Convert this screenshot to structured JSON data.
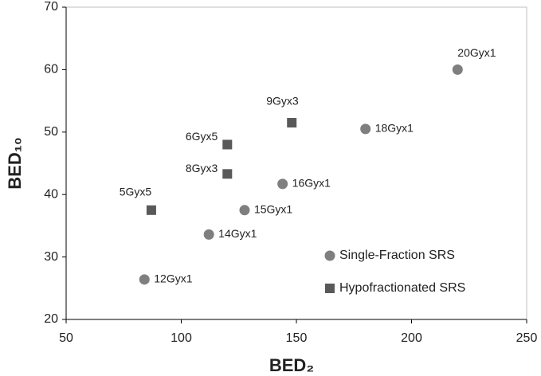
{
  "chart_data": {
    "type": "scatter",
    "xlabel": "BED₂",
    "ylabel": "BED₁₀",
    "xlim": [
      50,
      250
    ],
    "xticks": [
      50,
      100,
      150,
      200,
      250
    ],
    "ylim": [
      20,
      70
    ],
    "yticks": [
      20,
      30,
      40,
      50,
      60,
      70
    ],
    "legend": "lower right",
    "series": [
      {
        "name": "Single-Fraction SRS",
        "color": "#7f7f7f",
        "marker": "circle",
        "labels": [
          "12Gyx1",
          "14Gyx1",
          "15Gyx1",
          "16Gyx1",
          "18Gyx1",
          "20Gyx1"
        ],
        "x": [
          84,
          112,
          127.5,
          144,
          180,
          220
        ],
        "values": [
          26.4,
          33.6,
          37.5,
          41.7,
          50.5,
          60
        ]
      },
      {
        "name": "Hypofractionated SRS",
        "color": "#595959",
        "marker": "square",
        "labels": [
          "5Gyx5",
          "6Gyx5",
          "8Gyx3",
          "9Gyx3"
        ],
        "x": [
          87,
          120,
          120,
          148
        ],
        "values": [
          37.5,
          48,
          43.3,
          51.5
        ]
      }
    ]
  }
}
